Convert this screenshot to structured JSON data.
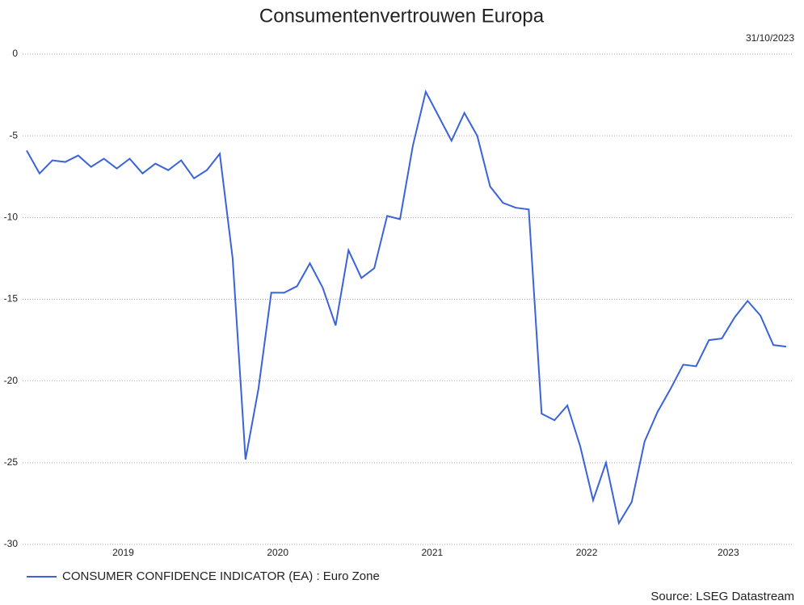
{
  "chart_data": {
    "type": "line",
    "title": "Consumentenvertrouwen Europa",
    "date": "31/10/2023",
    "source": "Source: LSEG Datastream",
    "categories": [
      null,
      null,
      null,
      null,
      null,
      null,
      null,
      "2019",
      null,
      null,
      null,
      null,
      null,
      null,
      null,
      null,
      null,
      null,
      null,
      "2020",
      null,
      null,
      null,
      null,
      null,
      null,
      null,
      null,
      null,
      null,
      null,
      "2021",
      null,
      null,
      null,
      null,
      null,
      null,
      null,
      null,
      null,
      null,
      null,
      "2022",
      null,
      null,
      null,
      null,
      null,
      null,
      null,
      null,
      null,
      null,
      "2023",
      null,
      null,
      null,
      null,
      null
    ],
    "series": [
      {
        "name": "CONSUMER CONFIDENCE INDICATOR (EA) : Euro Zone",
        "color": "#3a63d8",
        "values": [
          -5.9,
          -7.3,
          -6.5,
          -6.6,
          -6.2,
          -6.9,
          -6.4,
          -7.0,
          -6.4,
          -7.3,
          -6.7,
          -7.1,
          -6.5,
          -7.6,
          -7.1,
          -6.1,
          -12.5,
          -24.8,
          -20.5,
          -14.6,
          -14.6,
          -14.2,
          -12.8,
          -14.3,
          -16.6,
          -12.0,
          -13.7,
          -13.1,
          -9.9,
          -10.1,
          -5.6,
          -2.3,
          -3.8,
          -5.3,
          -3.6,
          -5.0,
          -8.1,
          -9.1,
          -9.4,
          -9.5,
          -22.0,
          -22.4,
          -21.5,
          -24.0,
          -27.3,
          -25.0,
          -28.7,
          -27.4,
          -23.7,
          -21.9,
          -20.5,
          -19.0,
          -19.1,
          -17.5,
          -17.4,
          -16.1,
          -15.1,
          -16.0,
          -17.8,
          -17.9
        ]
      }
    ],
    "ylim": [
      -30,
      0
    ],
    "yticks": [
      0,
      -5,
      -10,
      -15,
      -20,
      -25,
      -30
    ],
    "grid": true
  }
}
